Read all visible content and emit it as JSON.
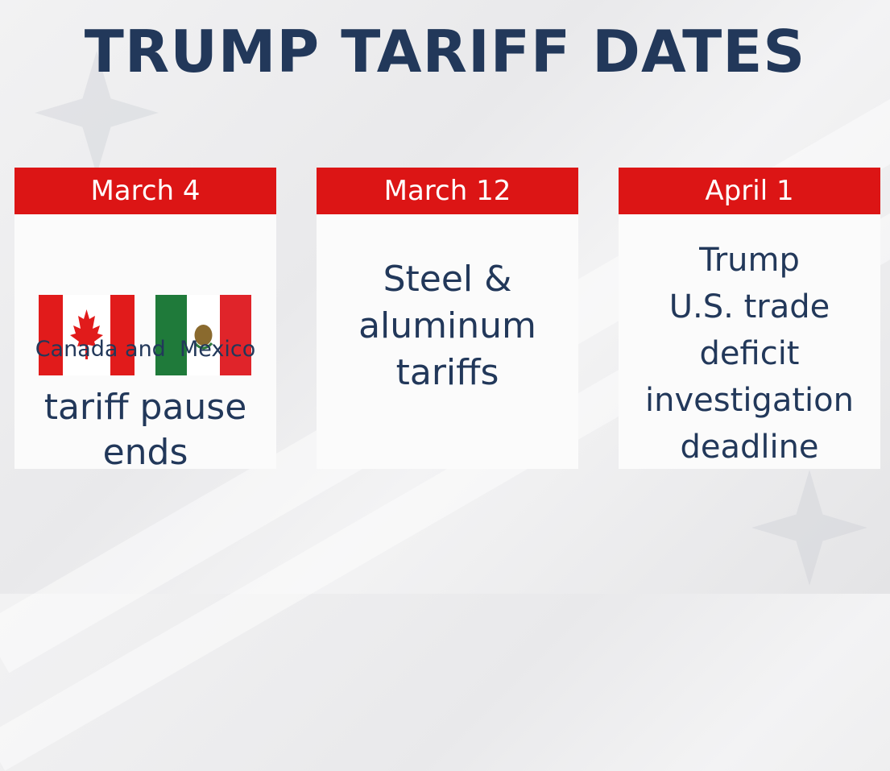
{
  "title": "TRUMP TARIFF DATES",
  "colors": {
    "title": "#22385a",
    "header": "#dc1515",
    "card": "#fbfbfb"
  },
  "cards": [
    {
      "date": "March 4",
      "flag_labels": {
        "left": "Canada and",
        "right": "Mexico"
      },
      "flags": [
        "canada-flag-icon",
        "mexico-flag-icon"
      ],
      "text": "tariff pause ends"
    },
    {
      "date": "March 12",
      "lines": [
        "Steel &",
        "aluminum",
        "tariffs"
      ]
    },
    {
      "date": "April 1",
      "lines": [
        "Trump",
        "U.S. trade deficit",
        "investigation",
        "deadline"
      ]
    }
  ]
}
